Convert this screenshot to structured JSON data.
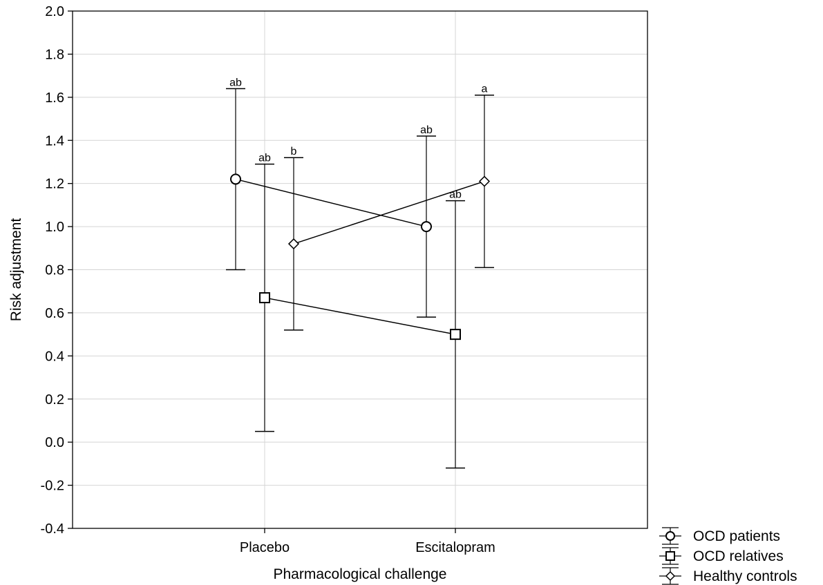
{
  "chart_data": {
    "type": "line",
    "xlabel": "Pharmacological challenge",
    "ylabel": "Risk adjustment",
    "categories": [
      "Placebo",
      "Escitalopram"
    ],
    "ylim": [
      -0.4,
      2.0
    ],
    "yticks": [
      "2.0",
      "1.8",
      "1.6",
      "1.4",
      "1.2",
      "1.0",
      "0.8",
      "0.6",
      "0.4",
      "0.2",
      "0.0",
      "-0.2",
      "-0.4"
    ],
    "grid": true,
    "legend_position": "bottom-right outside",
    "series": [
      {
        "name": "OCD patients",
        "marker": "circle",
        "values": [
          1.22,
          1.0
        ],
        "lower": [
          0.8,
          0.58
        ],
        "upper": [
          1.64,
          1.42
        ],
        "sig_labels": [
          "ab",
          "ab"
        ]
      },
      {
        "name": "OCD relatives",
        "marker": "square",
        "values": [
          0.67,
          0.5
        ],
        "lower": [
          0.05,
          -0.12
        ],
        "upper": [
          1.29,
          1.12
        ],
        "sig_labels": [
          "ab",
          "ab"
        ]
      },
      {
        "name": "Healthy controls",
        "marker": "diamond",
        "values": [
          0.92,
          1.21
        ],
        "lower": [
          0.52,
          0.81
        ],
        "upper": [
          1.32,
          1.61
        ],
        "sig_labels": [
          "b",
          "a"
        ]
      }
    ]
  }
}
